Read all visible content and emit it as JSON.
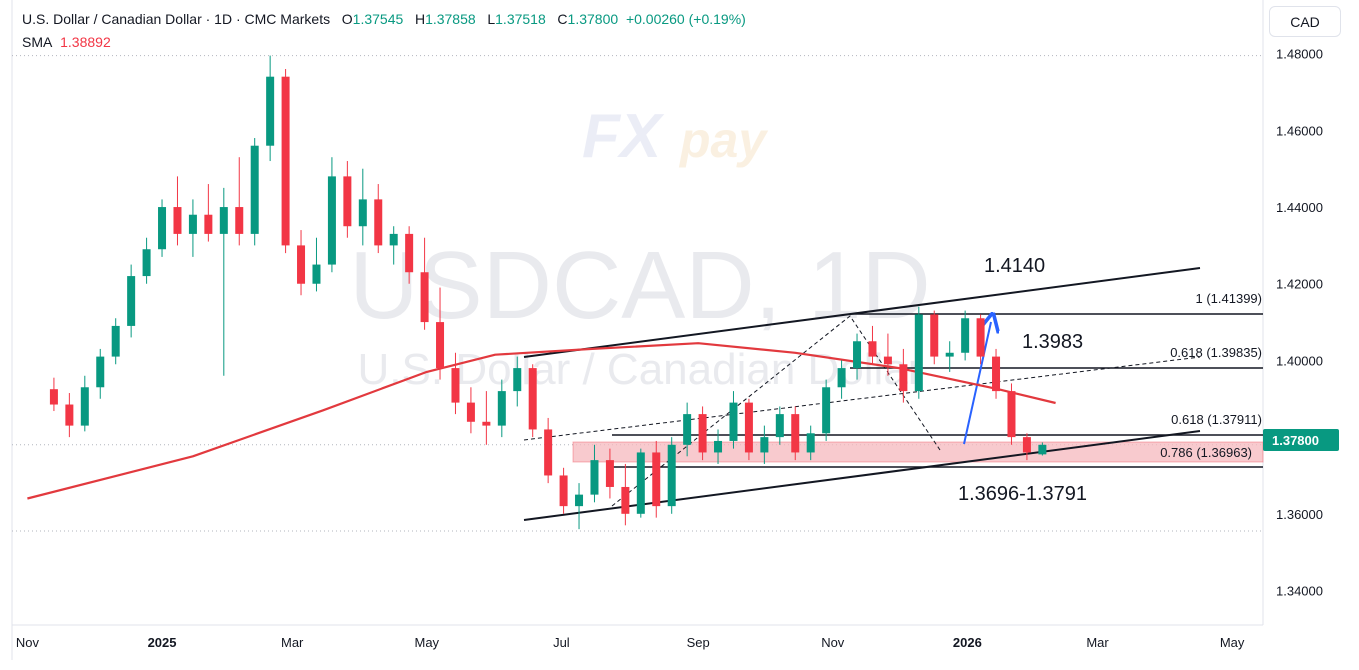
{
  "header": {
    "title": "U.S. Dollar / Canadian Dollar · 1D · CMC Markets",
    "o_label": "O",
    "o_value": "1.37545",
    "h_label": "H",
    "h_value": "1.37858",
    "l_label": "L",
    "l_value": "1.37518",
    "c_label": "C",
    "c_value": "1.37800",
    "change": "+0.00260 (+0.19%)",
    "sma_label": "SMA",
    "sma_value": "1.38892"
  },
  "currency_button": "CAD",
  "watermark": {
    "symbol": "USDCAD, 1D",
    "description": "U.S. Dollar / Canadian Dollar",
    "logo_text": "FXpay"
  },
  "colors": {
    "up": "#089981",
    "down": "#f23645",
    "sma": "#e2393e",
    "zone": "#f5b8bd",
    "arrow": "#2962ff",
    "price_tag": "#089981",
    "grid": "#b2b5be"
  },
  "chart_data": {
    "type": "candlestick",
    "symbol": "USDCAD",
    "timeframe": "1D",
    "ylim": [
      1.331,
      1.494
    ],
    "y_ticks": [
      "1.48000",
      "1.46000",
      "1.44000",
      "1.42000",
      "1.40000",
      "1.38000",
      "1.36000",
      "1.34000"
    ],
    "x_ticks": [
      "Nov",
      "2025",
      "Mar",
      "May",
      "Jul",
      "Sep",
      "Nov",
      "2026",
      "Mar",
      "May"
    ],
    "current_price": "1.37800",
    "candles": [
      {
        "date": "2024-11-13",
        "o": 1.3925,
        "h": 1.3955,
        "l": 1.3868,
        "c": 1.3885
      },
      {
        "date": "2024-11-20",
        "o": 1.3885,
        "h": 1.3915,
        "l": 1.38,
        "c": 1.383
      },
      {
        "date": "2024-11-27",
        "o": 1.383,
        "h": 1.396,
        "l": 1.3815,
        "c": 1.393
      },
      {
        "date": "2024-12-04",
        "o": 1.393,
        "h": 1.403,
        "l": 1.39,
        "c": 1.401
      },
      {
        "date": "2024-12-11",
        "o": 1.401,
        "h": 1.411,
        "l": 1.399,
        "c": 1.409
      },
      {
        "date": "2024-12-18",
        "o": 1.409,
        "h": 1.425,
        "l": 1.406,
        "c": 1.422
      },
      {
        "date": "2024-12-25",
        "o": 1.422,
        "h": 1.432,
        "l": 1.42,
        "c": 1.429
      },
      {
        "date": "2025-01-01",
        "o": 1.429,
        "h": 1.442,
        "l": 1.427,
        "c": 1.44
      },
      {
        "date": "2025-01-08",
        "o": 1.44,
        "h": 1.448,
        "l": 1.43,
        "c": 1.433
      },
      {
        "date": "2025-01-15",
        "o": 1.433,
        "h": 1.442,
        "l": 1.427,
        "c": 1.438
      },
      {
        "date": "2025-01-22",
        "o": 1.438,
        "h": 1.446,
        "l": 1.431,
        "c": 1.433
      },
      {
        "date": "2025-01-29",
        "o": 1.433,
        "h": 1.445,
        "l": 1.396,
        "c": 1.44
      },
      {
        "date": "2025-02-05",
        "o": 1.44,
        "h": 1.453,
        "l": 1.43,
        "c": 1.433
      },
      {
        "date": "2025-02-12",
        "o": 1.433,
        "h": 1.458,
        "l": 1.43,
        "c": 1.456
      },
      {
        "date": "2025-02-19",
        "o": 1.456,
        "h": 1.4795,
        "l": 1.452,
        "c": 1.474
      },
      {
        "date": "2025-02-26",
        "o": 1.474,
        "h": 1.476,
        "l": 1.428,
        "c": 1.43
      },
      {
        "date": "2025-03-05",
        "o": 1.43,
        "h": 1.434,
        "l": 1.417,
        "c": 1.42
      },
      {
        "date": "2025-03-12",
        "o": 1.42,
        "h": 1.432,
        "l": 1.418,
        "c": 1.425
      },
      {
        "date": "2025-03-19",
        "o": 1.425,
        "h": 1.453,
        "l": 1.423,
        "c": 1.448
      },
      {
        "date": "2025-03-26",
        "o": 1.448,
        "h": 1.452,
        "l": 1.432,
        "c": 1.435
      },
      {
        "date": "2025-04-02",
        "o": 1.435,
        "h": 1.45,
        "l": 1.43,
        "c": 1.442
      },
      {
        "date": "2025-04-09",
        "o": 1.442,
        "h": 1.446,
        "l": 1.428,
        "c": 1.43
      },
      {
        "date": "2025-04-16",
        "o": 1.43,
        "h": 1.435,
        "l": 1.425,
        "c": 1.433
      },
      {
        "date": "2025-04-23",
        "o": 1.433,
        "h": 1.435,
        "l": 1.42,
        "c": 1.423
      },
      {
        "date": "2025-04-30",
        "o": 1.423,
        "h": 1.432,
        "l": 1.408,
        "c": 1.41
      },
      {
        "date": "2025-05-07",
        "o": 1.41,
        "h": 1.419,
        "l": 1.395,
        "c": 1.398
      },
      {
        "date": "2025-05-14",
        "o": 1.398,
        "h": 1.402,
        "l": 1.386,
        "c": 1.389
      },
      {
        "date": "2025-05-21",
        "o": 1.389,
        "h": 1.393,
        "l": 1.381,
        "c": 1.384
      },
      {
        "date": "2025-05-28",
        "o": 1.384,
        "h": 1.392,
        "l": 1.378,
        "c": 1.383
      },
      {
        "date": "2025-06-04",
        "o": 1.383,
        "h": 1.395,
        "l": 1.38,
        "c": 1.392
      },
      {
        "date": "2025-06-11",
        "o": 1.392,
        "h": 1.401,
        "l": 1.388,
        "c": 1.398
      },
      {
        "date": "2025-06-18",
        "o": 1.398,
        "h": 1.399,
        "l": 1.38,
        "c": 1.382
      },
      {
        "date": "2025-06-25",
        "o": 1.382,
        "h": 1.385,
        "l": 1.368,
        "c": 1.37
      },
      {
        "date": "2025-07-02",
        "o": 1.37,
        "h": 1.372,
        "l": 1.36,
        "c": 1.362
      },
      {
        "date": "2025-07-09",
        "o": 1.362,
        "h": 1.368,
        "l": 1.356,
        "c": 1.365
      },
      {
        "date": "2025-07-16",
        "o": 1.365,
        "h": 1.378,
        "l": 1.363,
        "c": 1.374
      },
      {
        "date": "2025-07-23",
        "o": 1.374,
        "h": 1.377,
        "l": 1.364,
        "c": 1.367
      },
      {
        "date": "2025-07-30",
        "o": 1.367,
        "h": 1.373,
        "l": 1.357,
        "c": 1.36
      },
      {
        "date": "2025-08-06",
        "o": 1.36,
        "h": 1.377,
        "l": 1.359,
        "c": 1.376
      },
      {
        "date": "2025-08-13",
        "o": 1.376,
        "h": 1.379,
        "l": 1.359,
        "c": 1.362
      },
      {
        "date": "2025-08-20",
        "o": 1.362,
        "h": 1.38,
        "l": 1.36,
        "c": 1.378
      },
      {
        "date": "2025-08-27",
        "o": 1.378,
        "h": 1.389,
        "l": 1.375,
        "c": 1.386
      },
      {
        "date": "2025-09-03",
        "o": 1.386,
        "h": 1.388,
        "l": 1.374,
        "c": 1.376
      },
      {
        "date": "2025-09-10",
        "o": 1.376,
        "h": 1.382,
        "l": 1.373,
        "c": 1.379
      },
      {
        "date": "2025-09-17",
        "o": 1.379,
        "h": 1.392,
        "l": 1.377,
        "c": 1.389
      },
      {
        "date": "2025-09-24",
        "o": 1.389,
        "h": 1.39,
        "l": 1.374,
        "c": 1.376
      },
      {
        "date": "2025-10-01",
        "o": 1.376,
        "h": 1.383,
        "l": 1.373,
        "c": 1.38
      },
      {
        "date": "2025-10-08",
        "o": 1.38,
        "h": 1.388,
        "l": 1.378,
        "c": 1.386
      },
      {
        "date": "2025-10-15",
        "o": 1.386,
        "h": 1.388,
        "l": 1.374,
        "c": 1.376
      },
      {
        "date": "2025-10-22",
        "o": 1.376,
        "h": 1.383,
        "l": 1.374,
        "c": 1.381
      },
      {
        "date": "2025-10-29",
        "o": 1.381,
        "h": 1.395,
        "l": 1.379,
        "c": 1.393
      },
      {
        "date": "2025-11-05",
        "o": 1.393,
        "h": 1.4,
        "l": 1.39,
        "c": 1.398
      },
      {
        "date": "2025-11-12",
        "o": 1.398,
        "h": 1.407,
        "l": 1.395,
        "c": 1.405
      },
      {
        "date": "2025-11-19",
        "o": 1.405,
        "h": 1.409,
        "l": 1.399,
        "c": 1.401
      },
      {
        "date": "2025-11-26",
        "o": 1.401,
        "h": 1.407,
        "l": 1.396,
        "c": 1.399
      },
      {
        "date": "2025-12-03",
        "o": 1.399,
        "h": 1.403,
        "l": 1.389,
        "c": 1.392
      },
      {
        "date": "2025-12-10",
        "o": 1.392,
        "h": 1.414,
        "l": 1.39,
        "c": 1.412
      },
      {
        "date": "2025-12-17",
        "o": 1.412,
        "h": 1.413,
        "l": 1.399,
        "c": 1.401
      },
      {
        "date": "2025-12-24",
        "o": 1.401,
        "h": 1.405,
        "l": 1.397,
        "c": 1.402
      },
      {
        "date": "2025-12-31",
        "o": 1.402,
        "h": 1.413,
        "l": 1.4,
        "c": 1.411
      },
      {
        "date": "2026-01-07",
        "o": 1.411,
        "h": 1.412,
        "l": 1.399,
        "c": 1.401
      },
      {
        "date": "2026-01-14",
        "o": 1.401,
        "h": 1.403,
        "l": 1.39,
        "c": 1.392
      },
      {
        "date": "2026-01-21",
        "o": 1.392,
        "h": 1.394,
        "l": 1.378,
        "c": 1.38
      },
      {
        "date": "2026-01-28",
        "o": 1.38,
        "h": 1.381,
        "l": 1.374,
        "c": 1.376
      },
      {
        "date": "2026-02-04",
        "o": 1.3755,
        "h": 1.3786,
        "l": 1.3752,
        "c": 1.378
      }
    ],
    "sma": [
      {
        "date": "2024-11-01",
        "v": 1.364
      },
      {
        "date": "2025-01-15",
        "v": 1.375
      },
      {
        "date": "2025-03-15",
        "v": 1.387
      },
      {
        "date": "2025-05-01",
        "v": 1.397
      },
      {
        "date": "2025-06-01",
        "v": 1.4015
      },
      {
        "date": "2025-07-15",
        "v": 1.403
      },
      {
        "date": "2025-09-01",
        "v": 1.4045
      },
      {
        "date": "2025-10-15",
        "v": 1.402
      },
      {
        "date": "2025-12-01",
        "v": 1.398
      },
      {
        "date": "2026-01-15",
        "v": 1.3925
      },
      {
        "date": "2026-02-10",
        "v": 1.3889
      }
    ],
    "annotations": {
      "level_1": "1.4140",
      "level_2": "1.3983",
      "zone": "1.3696-1.3791",
      "fib_1": "1 (1.41399)",
      "fib_0618_upper": "0.618 (1.39835)",
      "fib_0618_lower": "0.618 (1.37911)",
      "fib_0786": "0.786 (1.36963)"
    }
  }
}
